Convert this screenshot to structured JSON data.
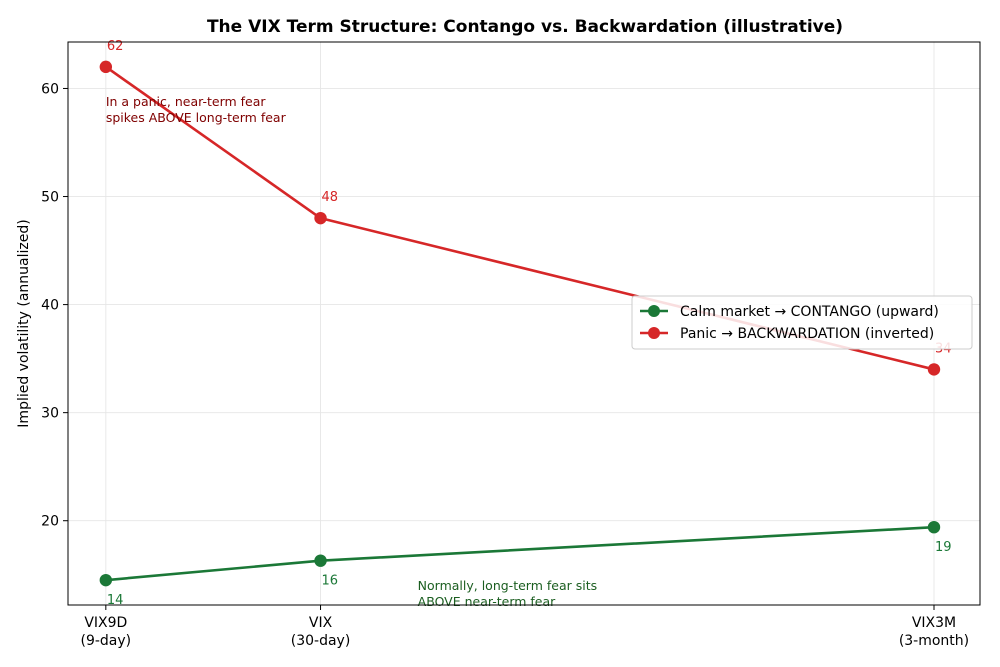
{
  "chart_data": {
    "type": "line",
    "title": "The VIX Term Structure: Contango vs. Backwardation (illustrative)",
    "xlabel": "",
    "ylabel": "Implied volatility (annualized)",
    "categories": [
      [
        "VIX9D",
        "(9-day)"
      ],
      [
        "VIX",
        "(30-day)"
      ],
      [
        "VIX3M",
        "(3-month)"
      ]
    ],
    "x": [
      9,
      30,
      90
    ],
    "xlim": [
      5.3,
      94.5
    ],
    "ylim": [
      12.2,
      64.3
    ],
    "yticks": [
      20,
      30,
      40,
      50,
      60
    ],
    "grid": true,
    "legend_position": "center-right",
    "series": [
      {
        "name": "Calm market → CONTANGO (upward)",
        "color": "#1b7837",
        "values": [
          14.5,
          16.3,
          19.4
        ],
        "data_labels": [
          "14",
          "16",
          "19"
        ]
      },
      {
        "name": "Panic → BACKWARDATION (inverted)",
        "color": "#d62728",
        "values": [
          62,
          48,
          34
        ],
        "data_labels": [
          "62",
          "48",
          "34"
        ]
      }
    ],
    "annotations": [
      {
        "lines": [
          "In a panic, near-term fear",
          "spikes ABOVE long-term fear"
        ],
        "color": "#7f0000",
        "x": 9,
        "y": 58.4
      },
      {
        "lines": [
          "Normally, long-term fear sits",
          "ABOVE near-term fear"
        ],
        "color": "#1b5e20",
        "x": 39.5,
        "y": 13.6
      }
    ]
  }
}
